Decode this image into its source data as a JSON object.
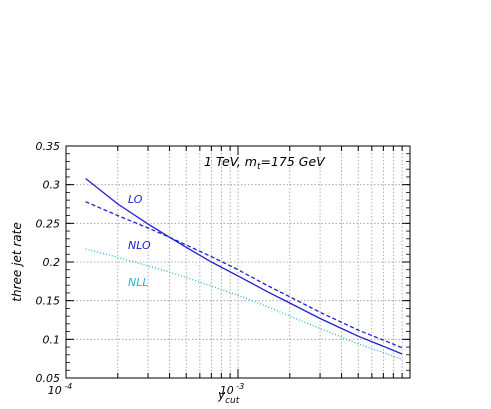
{
  "chart_data": {
    "type": "line",
    "title": "",
    "annotation": {
      "text": "1 TeV, m",
      "sub": "t",
      "suffix": "=175 GeV"
    },
    "xlabel": {
      "text": "y",
      "sub": "cut"
    },
    "ylabel": "three jet rate",
    "x_scale": "log",
    "xlim": [
      0.0001,
      0.01
    ],
    "ylim": [
      0.05,
      0.35
    ],
    "grid": true,
    "yticks": [
      0.05,
      0.1,
      0.15,
      0.2,
      0.25,
      0.3,
      0.35
    ],
    "ytick_labels": [
      "0.05",
      "0.1",
      "0.15",
      "0.2",
      "0.25",
      "0.3",
      "0.35"
    ],
    "xticks_major": [
      {
        "mantissa": "10",
        "exponent": "-4"
      },
      {
        "mantissa": "10",
        "exponent": "-3"
      }
    ],
    "series": [
      {
        "name": "LO",
        "color": "#2020d0",
        "style": "solid",
        "x": [
          0.00013,
          0.0002,
          0.0003,
          0.0004,
          0.0005,
          0.0007,
          0.001,
          0.0015,
          0.002,
          0.003,
          0.004,
          0.005,
          0.007,
          0.009
        ],
        "y": [
          0.308,
          0.275,
          0.249,
          0.232,
          0.219,
          0.2,
          0.182,
          0.161,
          0.147,
          0.127,
          0.114,
          0.104,
          0.091,
          0.081
        ]
      },
      {
        "name": "NLO",
        "color": "#2020d0",
        "style": "dashed",
        "x": [
          0.00013,
          0.0002,
          0.0003,
          0.0004,
          0.0005,
          0.0007,
          0.001,
          0.0015,
          0.002,
          0.003,
          0.004,
          0.005,
          0.007,
          0.009
        ],
        "y": [
          0.278,
          0.26,
          0.244,
          0.232,
          0.222,
          0.207,
          0.19,
          0.169,
          0.155,
          0.135,
          0.122,
          0.112,
          0.099,
          0.089
        ]
      },
      {
        "name": "NLL",
        "color": "#20b8c8",
        "style": "dotted",
        "x": [
          0.00013,
          0.0002,
          0.0003,
          0.0004,
          0.0005,
          0.0007,
          0.001,
          0.0015,
          0.002,
          0.003,
          0.004,
          0.005,
          0.007,
          0.009
        ],
        "y": [
          0.217,
          0.206,
          0.195,
          0.187,
          0.18,
          0.169,
          0.157,
          0.142,
          0.13,
          0.114,
          0.103,
          0.094,
          0.083,
          0.074
        ]
      }
    ]
  }
}
